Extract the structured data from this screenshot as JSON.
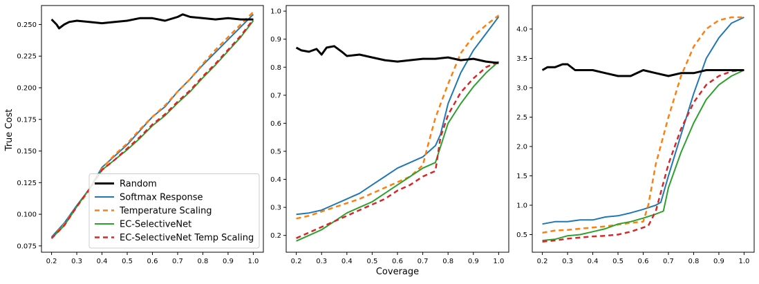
{
  "figure": {
    "xlabel": "Coverage",
    "ylabel": "True Cost"
  },
  "series_styles": {
    "Random": {
      "color": "#000000",
      "dash": "",
      "width": 3
    },
    "Softmax Response": {
      "color": "#1f77b4",
      "dash": "",
      "width": 2
    },
    "Temperature Scaling": {
      "color": "#ff7f0e",
      "dash": "7,5",
      "width": 2.5
    },
    "EC-SelectiveNet": {
      "color": "#2ca02c",
      "dash": "",
      "width": 2
    },
    "EC-SelectiveNet Temp Scaling": {
      "color": "#d62728",
      "dash": "7,5",
      "width": 2.5
    }
  },
  "chart_data": [
    {
      "type": "line",
      "ylim": [
        0.07,
        0.265
      ],
      "xlim": [
        0.16,
        1.04
      ],
      "xticks": [
        "0.2",
        "0.3",
        "0.4",
        "0.5",
        "0.6",
        "0.7",
        "0.8",
        "0.9",
        "1.0"
      ],
      "yticks": [
        "0.075",
        "0.100",
        "0.125",
        "0.150",
        "0.175",
        "0.200",
        "0.225",
        "0.250"
      ],
      "legend": "lower-right",
      "series": [
        {
          "name": "Random",
          "x": [
            0.2,
            0.22,
            0.23,
            0.25,
            0.27,
            0.3,
            0.35,
            0.4,
            0.45,
            0.5,
            0.55,
            0.6,
            0.65,
            0.7,
            0.72,
            0.75,
            0.8,
            0.85,
            0.9,
            0.95,
            1.0
          ],
          "y": [
            0.254,
            0.25,
            0.247,
            0.25,
            0.252,
            0.253,
            0.252,
            0.251,
            0.252,
            0.253,
            0.255,
            0.255,
            0.253,
            0.256,
            0.258,
            0.256,
            0.255,
            0.254,
            0.255,
            0.254,
            0.254
          ]
        },
        {
          "name": "Softmax Response",
          "x": [
            0.2,
            0.25,
            0.3,
            0.35,
            0.4,
            0.45,
            0.5,
            0.55,
            0.6,
            0.65,
            0.7,
            0.75,
            0.8,
            0.85,
            0.9,
            0.95,
            1.0
          ],
          "y": [
            0.082,
            0.093,
            0.107,
            0.12,
            0.137,
            0.146,
            0.155,
            0.166,
            0.177,
            0.185,
            0.197,
            0.207,
            0.218,
            0.228,
            0.238,
            0.248,
            0.258
          ]
        },
        {
          "name": "Temperature Scaling",
          "x": [
            0.2,
            0.25,
            0.3,
            0.35,
            0.4,
            0.45,
            0.5,
            0.55,
            0.6,
            0.65,
            0.7,
            0.75,
            0.8,
            0.85,
            0.9,
            0.95,
            1.0
          ],
          "y": [
            0.081,
            0.092,
            0.106,
            0.119,
            0.136,
            0.147,
            0.156,
            0.167,
            0.177,
            0.186,
            0.197,
            0.207,
            0.219,
            0.23,
            0.24,
            0.25,
            0.26
          ]
        },
        {
          "name": "EC-SelectiveNet",
          "x": [
            0.2,
            0.25,
            0.3,
            0.35,
            0.4,
            0.45,
            0.5,
            0.55,
            0.6,
            0.65,
            0.7,
            0.75,
            0.8,
            0.85,
            0.9,
            0.95,
            1.0
          ],
          "y": [
            0.081,
            0.091,
            0.106,
            0.12,
            0.135,
            0.143,
            0.151,
            0.16,
            0.17,
            0.178,
            0.188,
            0.197,
            0.208,
            0.218,
            0.229,
            0.24,
            0.253
          ]
        },
        {
          "name": "EC-SelectiveNet Temp Scaling",
          "x": [
            0.2,
            0.25,
            0.3,
            0.35,
            0.4,
            0.45,
            0.5,
            0.55,
            0.6,
            0.65,
            0.7,
            0.75,
            0.8,
            0.85,
            0.9,
            0.95,
            1.0
          ],
          "y": [
            0.081,
            0.091,
            0.106,
            0.12,
            0.135,
            0.143,
            0.152,
            0.161,
            0.171,
            0.179,
            0.189,
            0.198,
            0.209,
            0.219,
            0.23,
            0.241,
            0.254
          ]
        }
      ]
    },
    {
      "type": "line",
      "ylim": [
        0.14,
        1.02
      ],
      "xlim": [
        0.16,
        1.04
      ],
      "xticks": [
        "0.2",
        "0.3",
        "0.4",
        "0.5",
        "0.6",
        "0.7",
        "0.8",
        "0.9",
        "1.0"
      ],
      "yticks": [
        "0.2",
        "0.3",
        "0.4",
        "0.5",
        "0.6",
        "0.7",
        "0.8",
        "0.9",
        "1.0"
      ],
      "series": [
        {
          "name": "Random",
          "x": [
            0.2,
            0.22,
            0.25,
            0.28,
            0.3,
            0.32,
            0.35,
            0.38,
            0.4,
            0.45,
            0.5,
            0.55,
            0.6,
            0.65,
            0.7,
            0.75,
            0.8,
            0.85,
            0.9,
            0.95,
            1.0
          ],
          "y": [
            0.87,
            0.86,
            0.855,
            0.865,
            0.845,
            0.87,
            0.875,
            0.855,
            0.84,
            0.845,
            0.835,
            0.825,
            0.82,
            0.825,
            0.83,
            0.83,
            0.835,
            0.825,
            0.83,
            0.82,
            0.815
          ]
        },
        {
          "name": "Softmax Response",
          "x": [
            0.2,
            0.25,
            0.3,
            0.35,
            0.4,
            0.45,
            0.5,
            0.55,
            0.6,
            0.65,
            0.7,
            0.75,
            0.77,
            0.8,
            0.85,
            0.9,
            0.95,
            1.0
          ],
          "y": [
            0.275,
            0.28,
            0.29,
            0.31,
            0.33,
            0.35,
            0.38,
            0.41,
            0.44,
            0.46,
            0.48,
            0.52,
            0.56,
            0.67,
            0.78,
            0.86,
            0.92,
            0.98
          ]
        },
        {
          "name": "Temperature Scaling",
          "x": [
            0.2,
            0.25,
            0.3,
            0.35,
            0.4,
            0.45,
            0.5,
            0.55,
            0.6,
            0.65,
            0.7,
            0.72,
            0.75,
            0.8,
            0.85,
            0.9,
            0.95,
            1.0
          ],
          "y": [
            0.26,
            0.27,
            0.285,
            0.3,
            0.315,
            0.33,
            0.35,
            0.37,
            0.39,
            0.41,
            0.45,
            0.52,
            0.62,
            0.74,
            0.85,
            0.91,
            0.95,
            0.985
          ]
        },
        {
          "name": "EC-SelectiveNet",
          "x": [
            0.2,
            0.25,
            0.3,
            0.35,
            0.4,
            0.45,
            0.5,
            0.55,
            0.6,
            0.65,
            0.7,
            0.75,
            0.8,
            0.85,
            0.9,
            0.95,
            1.0
          ],
          "y": [
            0.18,
            0.2,
            0.22,
            0.25,
            0.28,
            0.3,
            0.32,
            0.35,
            0.38,
            0.41,
            0.44,
            0.46,
            0.6,
            0.67,
            0.73,
            0.78,
            0.82
          ]
        },
        {
          "name": "EC-SelectiveNet Temp Scaling",
          "x": [
            0.2,
            0.25,
            0.3,
            0.35,
            0.4,
            0.45,
            0.5,
            0.55,
            0.6,
            0.65,
            0.7,
            0.75,
            0.77,
            0.8,
            0.85,
            0.9,
            0.95,
            1.0
          ],
          "y": [
            0.19,
            0.21,
            0.23,
            0.25,
            0.27,
            0.29,
            0.31,
            0.33,
            0.36,
            0.38,
            0.41,
            0.43,
            0.55,
            0.63,
            0.71,
            0.76,
            0.8,
            0.82
          ]
        }
      ]
    },
    {
      "type": "line",
      "ylim": [
        0.2,
        4.4
      ],
      "xlim": [
        0.16,
        1.04
      ],
      "xticks": [
        "0.2",
        "0.3",
        "0.4",
        "0.5",
        "0.6",
        "0.7",
        "0.8",
        "0.9",
        "1.0"
      ],
      "yticks": [
        "0.5",
        "1.0",
        "1.5",
        "2.0",
        "2.5",
        "3.0",
        "3.5",
        "4.0"
      ],
      "series": [
        {
          "name": "Random",
          "x": [
            0.2,
            0.22,
            0.25,
            0.28,
            0.3,
            0.33,
            0.35,
            0.4,
            0.45,
            0.5,
            0.55,
            0.6,
            0.65,
            0.7,
            0.75,
            0.8,
            0.85,
            0.9,
            0.95,
            1.0
          ],
          "y": [
            3.3,
            3.35,
            3.35,
            3.4,
            3.4,
            3.3,
            3.3,
            3.3,
            3.25,
            3.2,
            3.2,
            3.3,
            3.25,
            3.2,
            3.25,
            3.25,
            3.3,
            3.3,
            3.3,
            3.3
          ]
        },
        {
          "name": "Softmax Response",
          "x": [
            0.2,
            0.25,
            0.3,
            0.35,
            0.4,
            0.45,
            0.5,
            0.55,
            0.6,
            0.65,
            0.67,
            0.7,
            0.75,
            0.8,
            0.85,
            0.9,
            0.95,
            1.0
          ],
          "y": [
            0.68,
            0.72,
            0.72,
            0.75,
            0.75,
            0.8,
            0.82,
            0.87,
            0.93,
            1.0,
            1.05,
            1.5,
            2.2,
            2.9,
            3.5,
            3.85,
            4.1,
            4.2
          ]
        },
        {
          "name": "Temperature Scaling",
          "x": [
            0.2,
            0.25,
            0.3,
            0.35,
            0.4,
            0.45,
            0.5,
            0.55,
            0.6,
            0.62,
            0.65,
            0.7,
            0.75,
            0.8,
            0.85,
            0.9,
            0.95,
            1.0
          ],
          "y": [
            0.53,
            0.57,
            0.58,
            0.6,
            0.62,
            0.64,
            0.67,
            0.7,
            0.72,
            1.0,
            1.7,
            2.5,
            3.2,
            3.7,
            4.0,
            4.15,
            4.2,
            4.2
          ]
        },
        {
          "name": "EC-SelectiveNet",
          "x": [
            0.2,
            0.25,
            0.3,
            0.35,
            0.4,
            0.45,
            0.5,
            0.55,
            0.6,
            0.65,
            0.68,
            0.7,
            0.75,
            0.8,
            0.85,
            0.9,
            0.95,
            1.0
          ],
          "y": [
            0.4,
            0.42,
            0.48,
            0.5,
            0.55,
            0.6,
            0.68,
            0.72,
            0.78,
            0.85,
            0.9,
            1.3,
            1.9,
            2.4,
            2.8,
            3.05,
            3.2,
            3.3
          ]
        },
        {
          "name": "EC-SelectiveNet Temp Scaling",
          "x": [
            0.2,
            0.25,
            0.3,
            0.35,
            0.4,
            0.45,
            0.5,
            0.55,
            0.6,
            0.62,
            0.65,
            0.7,
            0.75,
            0.8,
            0.85,
            0.9,
            0.95,
            1.0
          ],
          "y": [
            0.38,
            0.4,
            0.43,
            0.45,
            0.47,
            0.48,
            0.5,
            0.55,
            0.62,
            0.65,
            0.9,
            1.7,
            2.3,
            2.75,
            3.05,
            3.2,
            3.28,
            3.3
          ]
        }
      ]
    }
  ]
}
